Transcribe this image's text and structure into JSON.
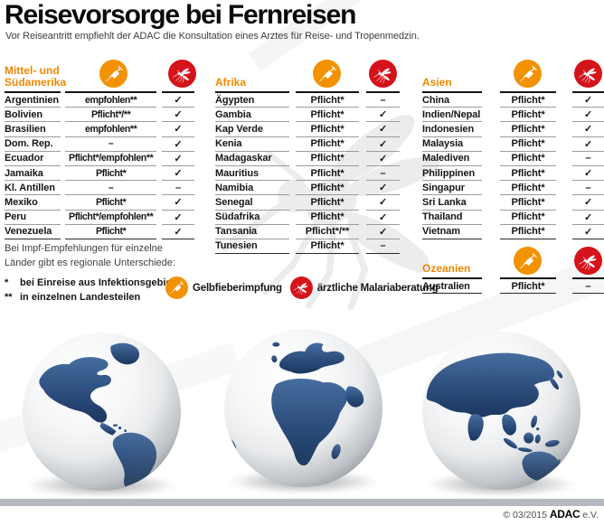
{
  "header": {
    "title": "Reisevorsorge bei Fernreisen",
    "subtitle": "Vor Reiseantritt empfiehlt der ADAC die Konsultation eines Arztes für Reise- und Tropenmedzin."
  },
  "icons": {
    "vaccine": "syringe-icon",
    "malaria": "mosquito-icon"
  },
  "tables": [
    {
      "region": "Mittel- und Südamerika",
      "rows": [
        [
          "Argentinien",
          "empfohlen**",
          "✓"
        ],
        [
          "Bolivien",
          "Pflicht*/**",
          "✓"
        ],
        [
          "Brasilien",
          "empfohlen**",
          "✓"
        ],
        [
          "Dom. Rep.",
          "–",
          "✓"
        ],
        [
          "Ecuador",
          "Pflicht*/empfohlen**",
          "✓"
        ],
        [
          "Jamaika",
          "Pflicht*",
          "✓"
        ],
        [
          "Kl. Antillen",
          "–",
          "–"
        ],
        [
          "Mexiko",
          "Pflicht*",
          "✓"
        ],
        [
          "Peru",
          "Pflicht*/empfohlen**",
          "✓"
        ],
        [
          "Venezuela",
          "Pflicht*",
          "✓"
        ]
      ]
    },
    {
      "region": "Afrika",
      "rows": [
        [
          "Ägypten",
          "Pflicht*",
          "–"
        ],
        [
          "Gambia",
          "Pflicht*",
          "✓"
        ],
        [
          "Kap Verde",
          "Pflicht*",
          "✓"
        ],
        [
          "Kenia",
          "Pflicht*",
          "✓"
        ],
        [
          "Madagaskar",
          "Pflicht*",
          "✓"
        ],
        [
          "Mauritius",
          "Pflicht*",
          "–"
        ],
        [
          "Namibia",
          "Pflicht*",
          "✓"
        ],
        [
          "Senegal",
          "Pflicht*",
          "✓"
        ],
        [
          "Südafrika",
          "Pflicht*",
          "✓"
        ],
        [
          "Tansania",
          "Pflicht*/**",
          "✓"
        ],
        [
          "Tunesien",
          "Pflicht*",
          "–"
        ]
      ]
    },
    {
      "region": "Asien",
      "rows": [
        [
          "China",
          "Pflicht*",
          "✓"
        ],
        [
          "Indien/Nepal",
          "Pflicht*",
          "✓"
        ],
        [
          "Indonesien",
          "Pflicht*",
          "✓"
        ],
        [
          "Malaysia",
          "Pflicht*",
          "✓"
        ],
        [
          "Malediven",
          "Pflicht*",
          "–"
        ],
        [
          "Philippinen",
          "Pflicht*",
          "✓"
        ],
        [
          "Singapur",
          "Pflicht*",
          "–"
        ],
        [
          "Sri Lanka",
          "Pflicht*",
          "✓"
        ],
        [
          "Thailand",
          "Pflicht*",
          "✓"
        ],
        [
          "Vietnam",
          "Pflicht*",
          "✓"
        ]
      ]
    },
    {
      "region": "Ozeanien",
      "rows": [
        [
          "Australien",
          "Pflicht*",
          "–"
        ]
      ]
    }
  ],
  "note_lines": [
    "Bei Impf-Empfehlungen für einzelne",
    "Länder gibt es regionale Unterschiede:"
  ],
  "footnotes": [
    {
      "marker": "*",
      "text": "bei Einreise aus Infektionsgebiet"
    },
    {
      "marker": "**",
      "text": "in einzelnen Landesteilen"
    }
  ],
  "legend": {
    "vaccine_label": "Gelbfieberimpfung",
    "malaria_label": "ärztliche Malariaberatung"
  },
  "footer": {
    "copyright": "© 03/2015",
    "brand": "ADAC",
    "brand_suffix": "e.V."
  },
  "colors": {
    "accent_orange": "#ee8800",
    "icon_orange": "#f39200",
    "icon_red": "#d5131a",
    "land_blue_light": "#466d9f",
    "land_blue_dark": "#1b3760",
    "footer_bar_gray": "#b4babf"
  }
}
